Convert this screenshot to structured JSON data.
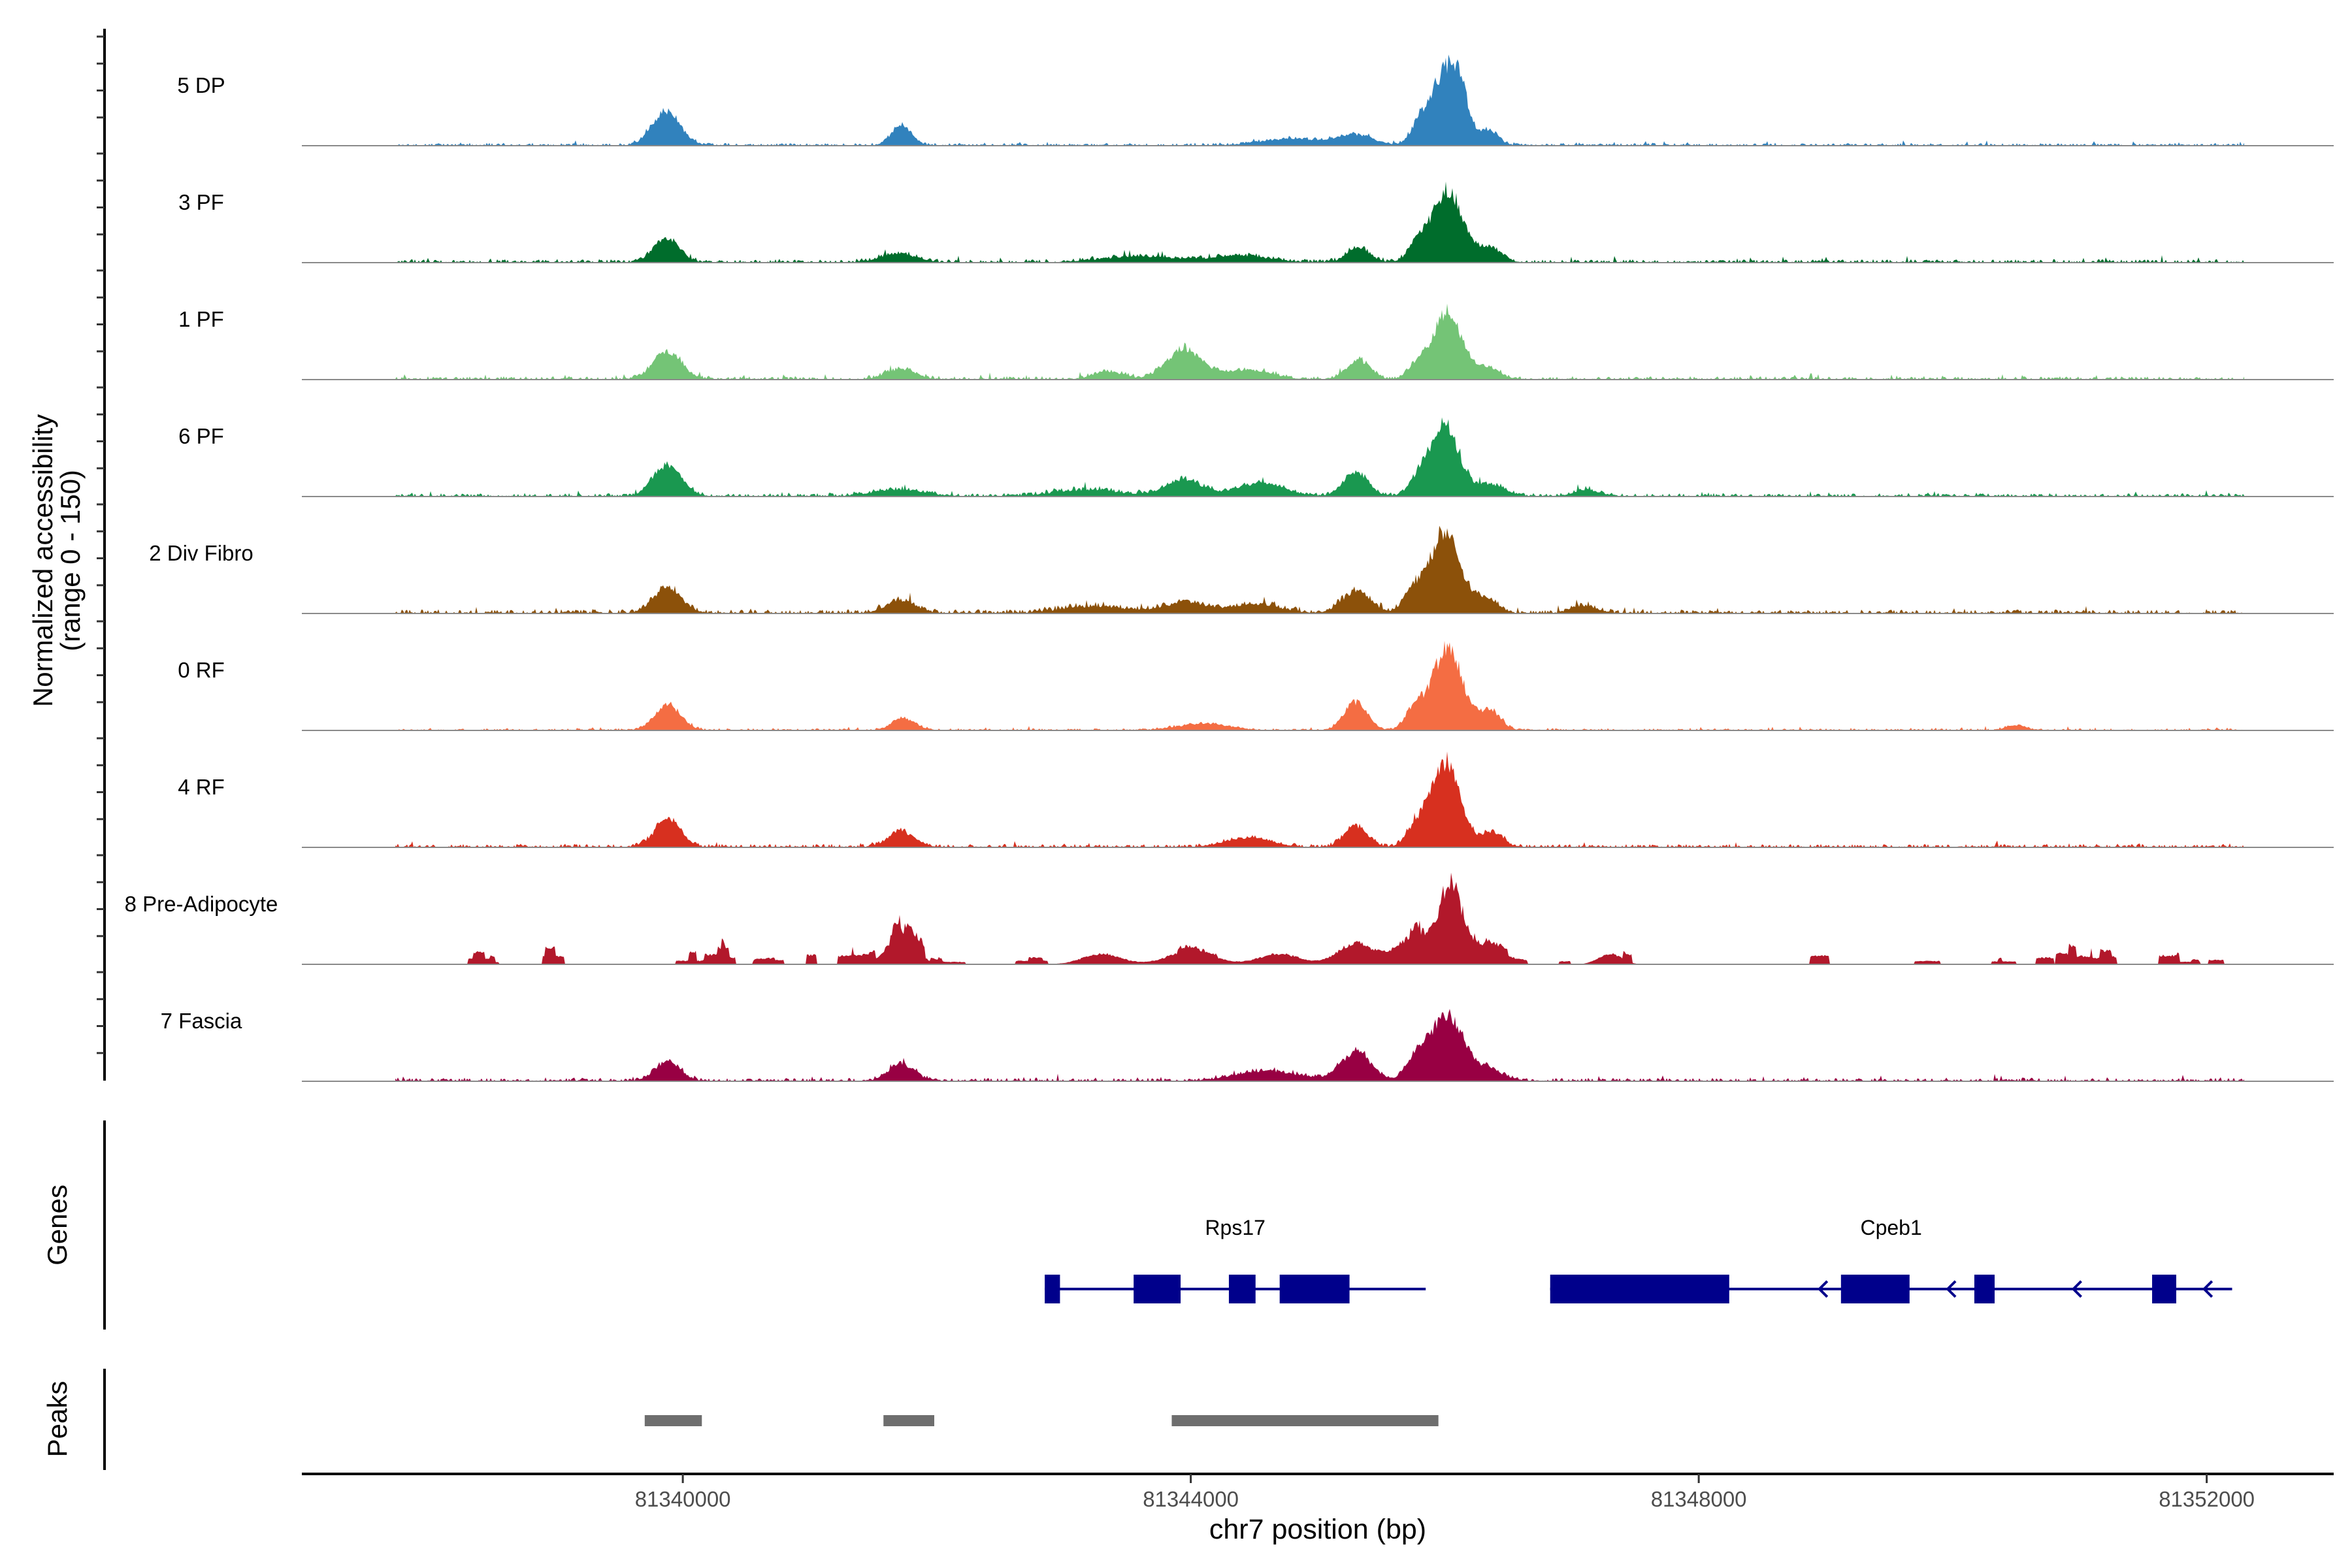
{
  "chart_data": {
    "type": "area",
    "title": "",
    "xlabel": "chr7 position (bp)",
    "ylabel_line1": "Normalized accessibility",
    "ylabel_line2": "(range 0 - 150)",
    "xlim": [
      81337000,
      81353000
    ],
    "ylim": [
      0,
      150
    ],
    "x_ticks": [
      81340000,
      81344000,
      81348000,
      81352000
    ],
    "x_tick_labels": [
      "81340000",
      "81344000",
      "81348000",
      "81352000"
    ],
    "panel_labels": {
      "genes": "Genes",
      "peaks": "Peaks"
    },
    "tracks": [
      {
        "name": "5 DP",
        "color": "#3182bd",
        "baseline": 4,
        "noise_density": "medium",
        "peaks": [
          [
            81339870,
            52,
            110
          ],
          [
            81341720,
            30,
            80
          ],
          [
            81344800,
            10,
            240
          ],
          [
            81345300,
            16,
            140
          ],
          [
            81345800,
            28,
            70
          ],
          [
            81346000,
            105,
            110
          ],
          [
            81346120,
            55,
            70
          ],
          [
            81346350,
            24,
            70
          ]
        ]
      },
      {
        "name": "3 PF",
        "color": "#006d2c",
        "baseline": 5,
        "noise_density": "medium",
        "peaks": [
          [
            81339870,
            36,
            100
          ],
          [
            81341700,
            13,
            140
          ],
          [
            81343600,
            9,
            300
          ],
          [
            81344400,
            10,
            220
          ],
          [
            81345320,
            22,
            90
          ],
          [
            81345780,
            26,
            70
          ],
          [
            81346020,
            110,
            120
          ],
          [
            81346360,
            22,
            90
          ]
        ]
      },
      {
        "name": "1 PF",
        "color": "#74c476",
        "baseline": 5,
        "noise_density": "medium",
        "peaks": [
          [
            81339880,
            42,
            110
          ],
          [
            81341720,
            16,
            110
          ],
          [
            81343350,
            12,
            120
          ],
          [
            81343950,
            46,
            140
          ],
          [
            81344450,
            14,
            180
          ],
          [
            81345320,
            30,
            90
          ],
          [
            81345780,
            18,
            70
          ],
          [
            81346020,
            100,
            120
          ],
          [
            81346350,
            16,
            90
          ]
        ]
      },
      {
        "name": "6 PF",
        "color": "#1a9850",
        "baseline": 5,
        "noise_density": "medium",
        "peaks": [
          [
            81339880,
            48,
            110
          ],
          [
            81341700,
            10,
            200
          ],
          [
            81343200,
            10,
            260
          ],
          [
            81343950,
            26,
            140
          ],
          [
            81344550,
            20,
            180
          ],
          [
            81345300,
            34,
            100
          ],
          [
            81345800,
            24,
            80
          ],
          [
            81346000,
            110,
            110
          ],
          [
            81346350,
            18,
            120
          ],
          [
            81347120,
            10,
            100
          ]
        ]
      },
      {
        "name": "2 Div Fibro",
        "color": "#8c510a",
        "baseline": 6,
        "noise_density": "medium",
        "peaks": [
          [
            81339880,
            38,
            110
          ],
          [
            81341720,
            20,
            110
          ],
          [
            81343250,
            10,
            260
          ],
          [
            81343950,
            16,
            160
          ],
          [
            81344500,
            14,
            200
          ],
          [
            81345300,
            34,
            110
          ],
          [
            81345750,
            30,
            80
          ],
          [
            81346000,
            122,
            120
          ],
          [
            81346320,
            22,
            90
          ],
          [
            81347100,
            11,
            100
          ]
        ]
      },
      {
        "name": "0 RF",
        "color": "#f46d43",
        "baseline": 3,
        "noise_density": "medium",
        "peaks": [
          [
            81339880,
            40,
            100
          ],
          [
            81341740,
            18,
            90
          ],
          [
            81344100,
            10,
            200
          ],
          [
            81345300,
            42,
            90
          ],
          [
            81345760,
            32,
            70
          ],
          [
            81346020,
            124,
            120
          ],
          [
            81346360,
            30,
            80
          ],
          [
            81350500,
            7,
            80
          ]
        ]
      },
      {
        "name": "4 RF",
        "color": "#d7301f",
        "baseline": 5,
        "noise_density": "medium",
        "peaks": [
          [
            81337500,
            11,
            110
          ],
          [
            81339880,
            42,
            100
          ],
          [
            81341720,
            24,
            100
          ],
          [
            81344450,
            14,
            180
          ],
          [
            81345300,
            32,
            90
          ],
          [
            81345760,
            22,
            70
          ],
          [
            81346000,
            132,
            120
          ],
          [
            81346380,
            22,
            80
          ]
        ]
      },
      {
        "name": "8 Pre-Adipocyte",
        "color": "#b2182b",
        "baseline": 0,
        "noise_density": "sparse",
        "peaks": [
          [
            81341720,
            44,
            110
          ],
          [
            81343300,
            16,
            150
          ],
          [
            81344000,
            20,
            180
          ],
          [
            81344700,
            16,
            160
          ],
          [
            81345300,
            32,
            140
          ],
          [
            81345800,
            48,
            160
          ],
          [
            81346050,
            110,
            80
          ],
          [
            81346300,
            20,
            140
          ],
          [
            81347300,
            16,
            90
          ]
        ]
      },
      {
        "name": "7 Fascia",
        "color": "#980043",
        "baseline": 5,
        "noise_density": "medium",
        "peaks": [
          [
            81337500,
            18,
            110
          ],
          [
            81339880,
            30,
            100
          ],
          [
            81341720,
            26,
            100
          ],
          [
            81344600,
            16,
            240
          ],
          [
            81345300,
            42,
            120
          ],
          [
            81345780,
            32,
            80
          ],
          [
            81346020,
            100,
            130
          ],
          [
            81346350,
            16,
            110
          ]
        ]
      }
    ],
    "genes": [
      {
        "name": "Rps17",
        "strand": "-",
        "color": "#00008b",
        "start": 81342850,
        "end": 81345850,
        "exons": [
          [
            81342850,
            81342970
          ],
          [
            81343550,
            81343920
          ],
          [
            81344300,
            81344510
          ],
          [
            81344700,
            81345250
          ]
        ]
      },
      {
        "name": "Cpeb1",
        "strand": "-",
        "color": "#00008b",
        "start": 81346830,
        "end": 81352200,
        "exons": [
          [
            81346830,
            81348240
          ],
          [
            81349120,
            81349660
          ],
          [
            81350170,
            81350330
          ],
          [
            81351570,
            81351760
          ]
        ],
        "arrow_positions": [
          81348950,
          81349960,
          81350950,
          81351980
        ]
      }
    ],
    "peaks_regions": [
      {
        "start": 81339700,
        "end": 81340150,
        "color": "#6e6e6e"
      },
      {
        "start": 81341580,
        "end": 81341980,
        "color": "#6e6e6e"
      },
      {
        "start": 81343850,
        "end": 81345950,
        "color": "#6e6e6e"
      }
    ]
  }
}
